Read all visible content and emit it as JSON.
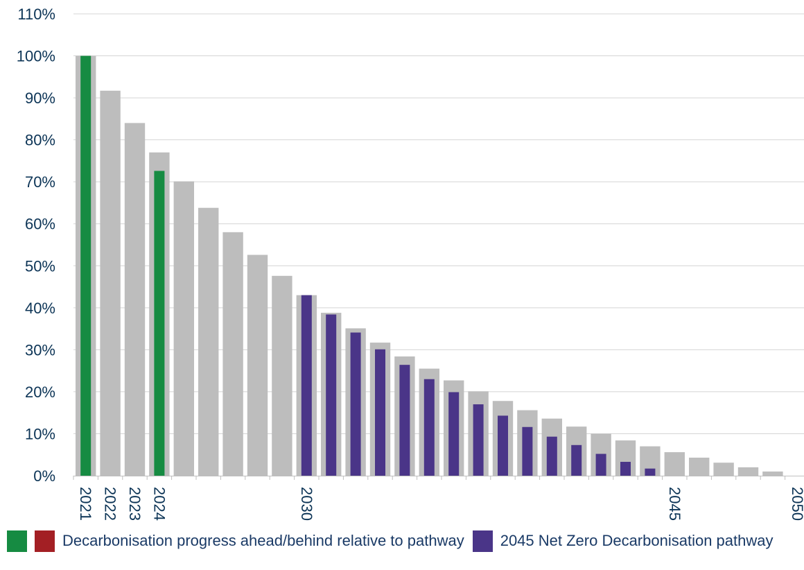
{
  "chart_data": {
    "type": "bar",
    "x_start": 2021,
    "x_end": 2050,
    "x_tick_labels": [
      "2021",
      "2022",
      "2023",
      "2024",
      "2030",
      "2045",
      "2050"
    ],
    "ylim": [
      0,
      110
    ],
    "y_ticks": [
      "0%",
      "10%",
      "20%",
      "30%",
      "40%",
      "50%",
      "60%",
      "70%",
      "80%",
      "90%",
      "100%",
      "110%"
    ],
    "grid": true,
    "series": [
      {
        "values": [
          100,
          91.7,
          84,
          77,
          70.1,
          63.8,
          58,
          52.6,
          47.6,
          43,
          38.8,
          35.1,
          31.7,
          28.4,
          25.5,
          22.7,
          20.1,
          17.8,
          15.6,
          13.6,
          11.7,
          10,
          8.4,
          7,
          5.6,
          4.3,
          3.1,
          2,
          1,
          0
        ],
        "color": "#bdbdbd"
      },
      {
        "name": "Decarbonisation progress ahead/behind relative to pathway",
        "years": [
          2021,
          2024
        ],
        "values": [
          100,
          72.6
        ],
        "color": "#168b42"
      },
      {
        "name": "2045 Net Zero Decarbonisation pathway",
        "years": [
          2030,
          2031,
          2032,
          2033,
          2034,
          2035,
          2036,
          2037,
          2038,
          2039,
          2040,
          2041,
          2042,
          2043,
          2044
        ],
        "values": [
          43,
          38.4,
          34.1,
          30.1,
          26.4,
          23,
          19.9,
          17,
          14.3,
          11.6,
          9.3,
          7.3,
          5.2,
          3.3,
          1.7
        ],
        "color": "#4a3588"
      }
    ]
  },
  "legend": {
    "swatch_green": "#168b42",
    "swatch_red": "#a31f24",
    "progress_label": "Decarbonisation progress ahead/behind relative to pathway",
    "swatch_purple": "#4a3588",
    "pathway_label": "2045 Net Zero Decarbonisation pathway"
  }
}
